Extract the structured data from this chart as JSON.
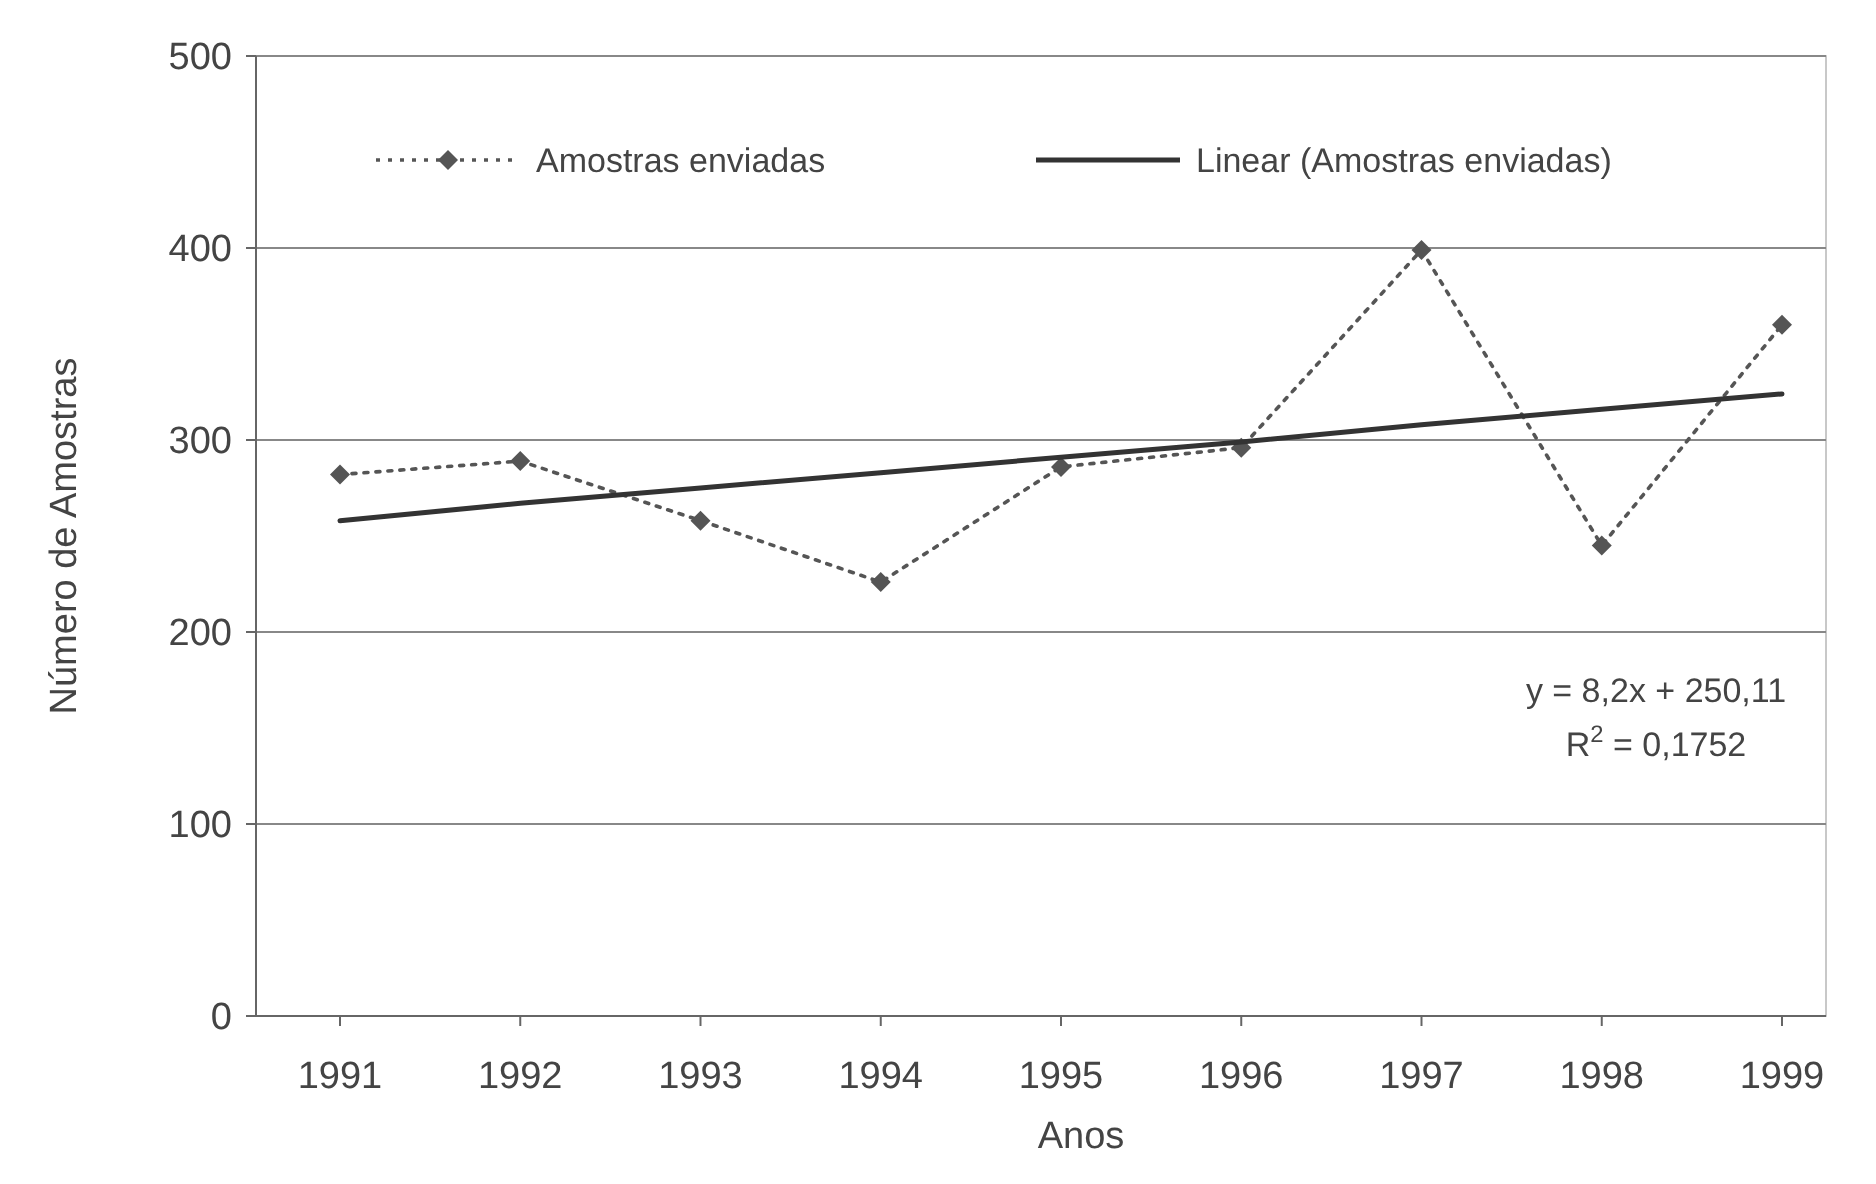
{
  "chart_data": {
    "type": "line",
    "xlabel": "Anos",
    "ylabel": "Número de Amostras",
    "categories": [
      "1991",
      "1992",
      "1993",
      "1994",
      "1995",
      "1996",
      "1997",
      "1998",
      "1999"
    ],
    "series": [
      {
        "name": "Amostras enviadas",
        "color": "#555555",
        "values": [
          282,
          289,
          258,
          226,
          286,
          296,
          399,
          245,
          360
        ],
        "marker": "diamond",
        "line_style": "dotted"
      },
      {
        "name": "Linear (Amostras enviadas)",
        "color": "#333333",
        "type": "line",
        "values": [
          258,
          267,
          275,
          283,
          291,
          299,
          308,
          316,
          324
        ],
        "marker": "none",
        "line_style": "solid"
      }
    ],
    "ylim": [
      0,
      500
    ],
    "yticks": [
      0,
      100,
      200,
      300,
      400,
      500
    ],
    "grid": "y",
    "legend": "top",
    "annotations": [
      "y = 8,2x + 250,11",
      "R$^{2}$ = 0,1752"
    ]
  }
}
